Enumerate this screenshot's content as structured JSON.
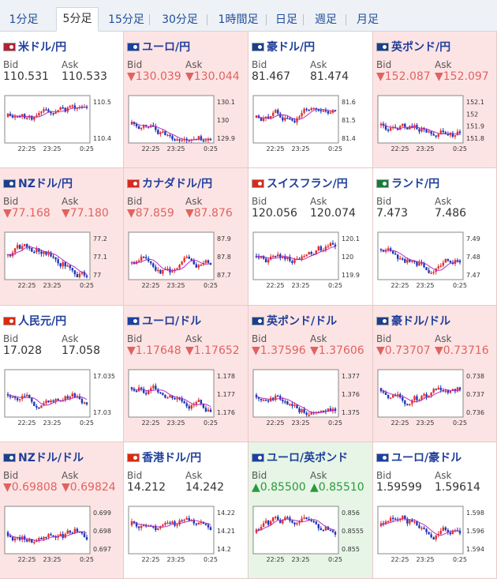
{
  "tabs": [
    {
      "label": "1分足"
    },
    {
      "label": "5分足"
    },
    {
      "label": "15分足"
    },
    {
      "label": "30分足"
    },
    {
      "label": "1時間足"
    },
    {
      "label": "日足"
    },
    {
      "label": "週足"
    },
    {
      "label": "月足"
    }
  ],
  "active_tab": 1,
  "labels": {
    "bid": "Bid",
    "ask": "Ask"
  },
  "pairs": [
    {
      "name": "米ドル/円",
      "flag": "us-jp",
      "bg": "white",
      "trend": "none",
      "bid": "110.531",
      "ask": "110.533",
      "yticks": [
        "110.5",
        "110.4"
      ],
      "xticks": [
        "22:25",
        "23:25",
        "0:25"
      ]
    },
    {
      "name": "ユーロ/円",
      "flag": "eu-jp",
      "bg": "pink",
      "trend": "down",
      "bid": "▼130.039",
      "ask": "▼130.044",
      "yticks": [
        "130.1",
        "130",
        "129.9"
      ],
      "xticks": [
        "22:25",
        "23:25",
        "0:25"
      ]
    },
    {
      "name": "豪ドル/円",
      "flag": "au-jp",
      "bg": "white",
      "trend": "none",
      "bid": "81.467",
      "ask": "81.474",
      "yticks": [
        "81.6",
        "81.5",
        "81.4"
      ],
      "xticks": [
        "22:25",
        "23:25",
        "0:25"
      ]
    },
    {
      "name": "英ポンド/円",
      "flag": "gb-jp",
      "bg": "pink",
      "trend": "down",
      "bid": "▼152.087",
      "ask": "▼152.097",
      "yticks": [
        "152.1",
        "152",
        "151.9",
        "151.8"
      ],
      "xticks": [
        "22:25",
        "23:25",
        "0:25"
      ]
    },
    {
      "name": "NZドル/円",
      "flag": "nz-jp",
      "bg": "pink",
      "trend": "down",
      "bid": "▼77.168",
      "ask": "▼77.180",
      "yticks": [
        "77.2",
        "77.1",
        "77"
      ],
      "xticks": [
        "22:25",
        "23:25",
        "0:25"
      ]
    },
    {
      "name": "カナダドル/円",
      "flag": "ca-jp",
      "bg": "pink",
      "trend": "down",
      "bid": "▼87.859",
      "ask": "▼87.876",
      "yticks": [
        "87.9",
        "87.8",
        "87.7"
      ],
      "xticks": [
        "22:25",
        "23:25",
        "0:25"
      ]
    },
    {
      "name": "スイスフラン/円",
      "flag": "ch-jp",
      "bg": "white",
      "trend": "none",
      "bid": "120.056",
      "ask": "120.074",
      "yticks": [
        "120.1",
        "120",
        "119.9"
      ],
      "xticks": [
        "22:25",
        "23:25",
        "0:25"
      ]
    },
    {
      "name": "ランド/円",
      "flag": "za-jp",
      "bg": "white",
      "trend": "none",
      "bid": "7.473",
      "ask": "7.486",
      "yticks": [
        "7.49",
        "7.48",
        "7.47"
      ],
      "xticks": [
        "22:25",
        "23:25",
        "0:25"
      ]
    },
    {
      "name": "人民元/円",
      "flag": "cn-jp",
      "bg": "white",
      "trend": "none",
      "bid": "17.028",
      "ask": "17.058",
      "yticks": [
        "17.035",
        "17.03"
      ],
      "xticks": [
        "22:25",
        "23:25",
        "0:25"
      ]
    },
    {
      "name": "ユーロ/ドル",
      "flag": "eu-us",
      "bg": "pink",
      "trend": "down",
      "bid": "▼1.17648",
      "ask": "▼1.17652",
      "yticks": [
        "1.178",
        "1.177",
        "1.176"
      ],
      "xticks": [
        "22:25",
        "23:25",
        "0:25"
      ]
    },
    {
      "name": "英ポンド/ドル",
      "flag": "gb-us",
      "bg": "pink",
      "trend": "down",
      "bid": "▼1.37596",
      "ask": "▼1.37606",
      "yticks": [
        "1.377",
        "1.376",
        "1.375"
      ],
      "xticks": [
        "22:25",
        "23:25",
        "0:25"
      ]
    },
    {
      "name": "豪ドル/ドル",
      "flag": "au-us",
      "bg": "pink",
      "trend": "down",
      "bid": "▼0.73707",
      "ask": "▼0.73716",
      "yticks": [
        "0.738",
        "0.737",
        "0.736"
      ],
      "xticks": [
        "22:25",
        "23:25",
        "0:25"
      ]
    },
    {
      "name": "NZドル/ドル",
      "flag": "nz-us",
      "bg": "pink",
      "trend": "down",
      "bid": "▼0.69808",
      "ask": "▼0.69824",
      "yticks": [
        "0.699",
        "0.698",
        "0.697"
      ],
      "xticks": [
        "22:25",
        "23:25",
        "0:25"
      ]
    },
    {
      "name": "香港ドル/円",
      "flag": "hk-jp",
      "bg": "white",
      "trend": "none",
      "bid": "14.212",
      "ask": "14.242",
      "yticks": [
        "14.22",
        "14.21",
        "14.2"
      ],
      "xticks": [
        "22:25",
        "23:25",
        "0:25"
      ]
    },
    {
      "name": "ユーロ/英ポンド",
      "flag": "eu-gb",
      "bg": "green",
      "trend": "up",
      "bid": "▲0.85500",
      "ask": "▲0.85510",
      "yticks": [
        "0.856",
        "0.8555",
        "0.855"
      ],
      "xticks": [
        "22:25",
        "23:25",
        "0:25"
      ]
    },
    {
      "name": "ユーロ/豪ドル",
      "flag": "eu-au",
      "bg": "white",
      "trend": "none",
      "bid": "1.59599",
      "ask": "1.59614",
      "yticks": [
        "1.598",
        "1.596",
        "1.594"
      ],
      "xticks": [
        "22:25",
        "23:25",
        "0:25"
      ]
    }
  ],
  "colors": {
    "up_candle": "#e0322f",
    "down_candle": "#1f37b5",
    "ma_line": "#b42fc1",
    "trend_down": "#e0635f",
    "trend_up": "#2a9a3a"
  }
}
